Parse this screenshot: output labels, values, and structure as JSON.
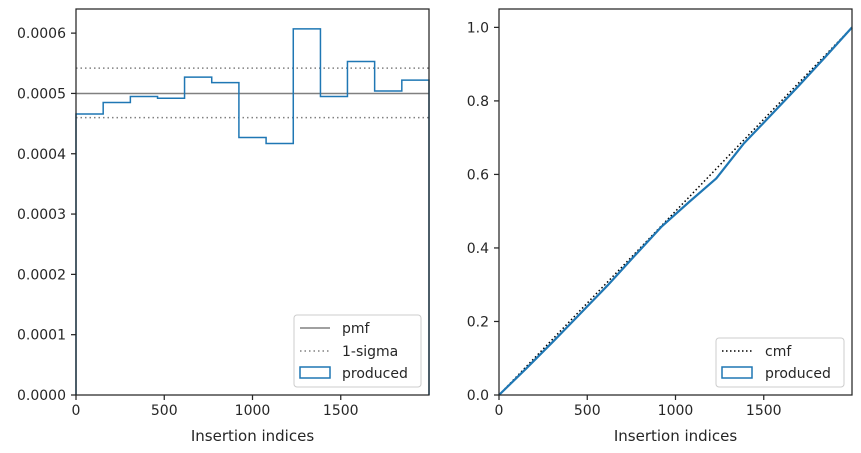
{
  "chart_data": [
    {
      "type": "step",
      "xlabel": "Insertion indices",
      "ylabel": "",
      "xlim": [
        0,
        2000
      ],
      "ylim": [
        0,
        0.00064
      ],
      "xticks": [
        0,
        500,
        1000,
        1500
      ],
      "xtick_labels": [
        "0",
        "500",
        "1000",
        "1500"
      ],
      "yticks": [
        0,
        0.0001,
        0.0002,
        0.0003,
        0.0004,
        0.0005,
        0.0006
      ],
      "ytick_labels": [
        "0.0000",
        "0.0001",
        "0.0002",
        "0.0003",
        "0.0004",
        "0.0005",
        "0.0006"
      ],
      "grid": false,
      "legend_position": "lower-right",
      "pmf": {
        "name": "pmf",
        "value": 0.0005,
        "color": "#808080"
      },
      "sigma": {
        "name": "1-sigma",
        "upper": 0.000542,
        "lower": 0.00046,
        "color": "#808080"
      },
      "histogram": {
        "name": "produced",
        "color": "#1f77b4",
        "bin_edges": [
          0,
          154,
          308,
          462,
          615,
          769,
          923,
          1077,
          1231,
          1385,
          1538,
          1692,
          1846,
          2000
        ],
        "values": [
          0.000466,
          0.000485,
          0.000495,
          0.000492,
          0.000527,
          0.000518,
          0.000427,
          0.000417,
          0.000607,
          0.000495,
          0.000553,
          0.000504,
          0.000522
        ]
      }
    },
    {
      "type": "line",
      "xlabel": "Insertion indices",
      "ylabel": "",
      "xlim": [
        0,
        2000
      ],
      "ylim": [
        0,
        1.05
      ],
      "xticks": [
        0,
        500,
        1000,
        1500
      ],
      "xtick_labels": [
        "0",
        "500",
        "1000",
        "1500"
      ],
      "yticks": [
        0,
        0.2,
        0.4,
        0.6,
        0.8,
        1.0
      ],
      "ytick_labels": [
        "0.0",
        "0.2",
        "0.4",
        "0.6",
        "0.8",
        "1.0"
      ],
      "grid": false,
      "legend_position": "lower-right",
      "series": [
        {
          "name": "cmf",
          "style": "dotted",
          "color": "#000000",
          "x": [
            0,
            2000
          ],
          "y": [
            0,
            1.0
          ]
        },
        {
          "name": "produced",
          "color": "#1f77b4",
          "x": [
            0,
            154,
            308,
            462,
            615,
            769,
            923,
            1077,
            1231,
            1385,
            1538,
            1692,
            1846,
            2000
          ],
          "y": [
            0,
            0.072,
            0.146,
            0.222,
            0.298,
            0.379,
            0.459,
            0.525,
            0.589,
            0.683,
            0.76,
            0.838,
            0.918,
            1.0
          ]
        }
      ]
    }
  ]
}
